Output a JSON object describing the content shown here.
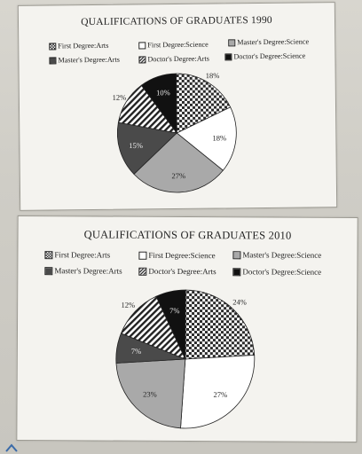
{
  "patterns": {
    "first_arts": "checker",
    "first_science": "white",
    "masters_science": "light-gray",
    "masters_arts": "dark-gray",
    "doctors_arts": "diagonal-stripes",
    "doctors_science": "black"
  },
  "colors": {
    "panel": "#f4f3ef",
    "light_gray": "#a9a9a9",
    "dark_gray": "#4a4a4a",
    "black": "#111111",
    "white": "#ffffff"
  },
  "chart_data": [
    {
      "type": "pie",
      "title": "QUALIFICATIONS OF GRADUATES 1990",
      "legend": [
        {
          "key": "first_arts",
          "label": "First Degree:Arts"
        },
        {
          "key": "first_science",
          "label": "First Degree:Science"
        },
        {
          "key": "masters_science",
          "label": "Master's Degree:Science"
        },
        {
          "key": "masters_arts",
          "label": "Master's Degree:Arts"
        },
        {
          "key": "doctors_arts",
          "label": "Doctor's Degree:Arts"
        },
        {
          "key": "doctors_science",
          "label": "Doctor's Degree:Science"
        }
      ],
      "slices": [
        {
          "key": "first_arts",
          "value": 18,
          "label": "18%"
        },
        {
          "key": "first_science",
          "value": 18,
          "label": "18%"
        },
        {
          "key": "masters_science",
          "value": 27,
          "label": "27%"
        },
        {
          "key": "masters_arts",
          "value": 15,
          "label": "15%"
        },
        {
          "key": "doctors_arts",
          "value": 12,
          "label": "12%"
        },
        {
          "key": "doctors_science",
          "value": 10,
          "label": "10%"
        }
      ]
    },
    {
      "type": "pie",
      "title": "QUALIFICATIONS OF GRADUATES 2010",
      "legend": [
        {
          "key": "first_arts",
          "label": "First Degree:Arts"
        },
        {
          "key": "first_science",
          "label": "First Degree:Science"
        },
        {
          "key": "masters_science",
          "label": "Master's Degree:Science"
        },
        {
          "key": "masters_arts",
          "label": "Master's Degree:Arts"
        },
        {
          "key": "doctors_arts",
          "label": "Doctor's Degree:Arts"
        },
        {
          "key": "doctors_science",
          "label": "Doctor's Degree:Science"
        }
      ],
      "slices": [
        {
          "key": "first_arts",
          "value": 24,
          "label": "24%"
        },
        {
          "key": "first_science",
          "value": 27,
          "label": "27%"
        },
        {
          "key": "masters_science",
          "value": 23,
          "label": "23%"
        },
        {
          "key": "masters_arts",
          "value": 7,
          "label": "7%"
        },
        {
          "key": "doctors_arts",
          "value": 12,
          "label": "12%"
        },
        {
          "key": "doctors_science",
          "value": 7,
          "label": "7%"
        }
      ]
    }
  ]
}
